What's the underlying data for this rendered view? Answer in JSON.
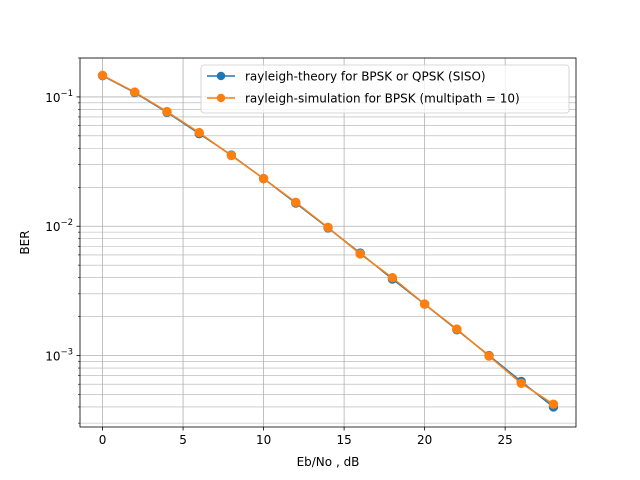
{
  "chart_data": {
    "type": "line",
    "title": "",
    "xlabel": "Eb/No , dB",
    "ylabel": "BER",
    "xlim": [
      -1.4,
      29.4
    ],
    "ylim": [
      0.00028,
      0.2
    ],
    "yscale": "log",
    "grid": true,
    "grid_minor_y": true,
    "legend_position": "top-right",
    "x_ticks": [
      0,
      5,
      10,
      15,
      20,
      25
    ],
    "x_tick_labels": [
      "0",
      "5",
      "10",
      "15",
      "20",
      "25"
    ],
    "y_ticks": [
      0.001,
      0.01,
      0.1
    ],
    "y_tick_labels": [
      {
        "base": "10",
        "exp": "−3"
      },
      {
        "base": "10",
        "exp": "−2"
      },
      {
        "base": "10",
        "exp": "−1"
      }
    ],
    "x": [
      0,
      2,
      4,
      6,
      8,
      10,
      12,
      14,
      16,
      18,
      20,
      22,
      24,
      26,
      28
    ],
    "series": [
      {
        "name": "rayleigh-theory for BPSK or QPSK (SISO)",
        "color": "#1f77b4",
        "values": [
          0.146,
          0.108,
          0.076,
          0.052,
          0.0355,
          0.0233,
          0.0151,
          0.0097,
          0.0062,
          0.0039,
          0.0025,
          0.00158,
          0.001,
          0.00063,
          0.0004
        ]
      },
      {
        "name": "rayleigh-simulation for BPSK (multipath = 10)",
        "color": "#ff7f0e",
        "values": [
          0.147,
          0.109,
          0.077,
          0.053,
          0.0352,
          0.0234,
          0.0153,
          0.0098,
          0.0061,
          0.004,
          0.0025,
          0.0016,
          0.00099,
          0.00061,
          0.00042
        ]
      }
    ]
  }
}
